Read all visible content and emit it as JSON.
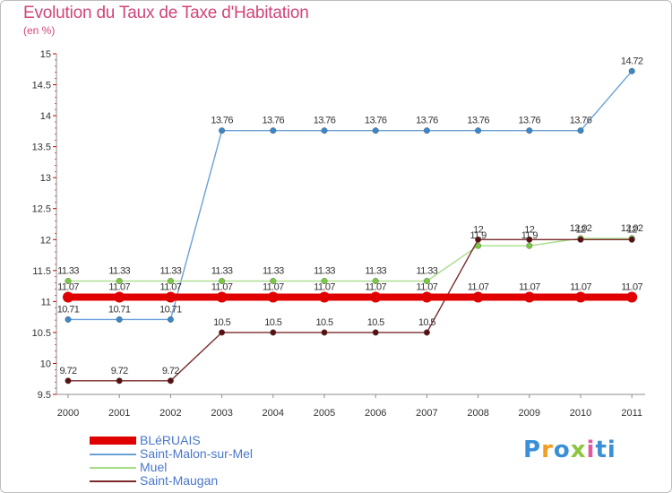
{
  "title": "Evolution du Taux de Taxe d'Habitation",
  "subtitle": "(en %)",
  "logo": {
    "text": "Proxiti",
    "letters": [
      "P",
      "r",
      "o",
      "x",
      "i",
      "ti"
    ]
  },
  "chart_data": {
    "type": "line",
    "title": "Evolution du Taux de Taxe d'Habitation",
    "ylabel": "(en %)",
    "xlabel": "",
    "x": [
      "2000",
      "2001",
      "2002",
      "2003",
      "2004",
      "2005",
      "2006",
      "2007",
      "2008",
      "2009",
      "2010",
      "2011"
    ],
    "ylim": [
      9.5,
      15
    ],
    "yticks": [
      9.5,
      10,
      10.5,
      11,
      11.5,
      12,
      12.5,
      13,
      13.5,
      14,
      14.5,
      15
    ],
    "series": [
      {
        "name": "BLéRUAIS",
        "color": "#e00000",
        "bold": true,
        "values": [
          11.07,
          11.07,
          11.07,
          11.07,
          11.07,
          11.07,
          11.07,
          11.07,
          11.07,
          11.07,
          11.07,
          11.07
        ],
        "labels": [
          "11.07",
          "11.07",
          "11.07",
          "11.07",
          "11.07",
          "11.07",
          "11.07",
          "11.07",
          "11.07",
          "11.07",
          "11.07",
          "11.07"
        ]
      },
      {
        "name": "Saint-Malon-sur-Mel",
        "color": "#6aa0d8",
        "marker": "#3a86c8",
        "values": [
          10.71,
          10.71,
          10.71,
          13.76,
          13.76,
          13.76,
          13.76,
          13.76,
          13.76,
          13.76,
          13.76,
          14.72
        ],
        "labels": [
          "10.71",
          "10.71",
          "10.71",
          "13.76",
          "13.76",
          "13.76",
          "13.76",
          "13.76",
          "13.76",
          "13.76",
          "13.76",
          "14.72"
        ]
      },
      {
        "name": "Muel",
        "color": "#a8dc8a",
        "marker": "#7ac943",
        "values": [
          11.33,
          11.33,
          11.33,
          11.33,
          11.33,
          11.33,
          11.33,
          11.33,
          11.9,
          11.9,
          12.02,
          12.02
        ],
        "labels": [
          "11.33",
          "11.33",
          "11.33",
          "11.33",
          "11.33",
          "11.33",
          "11.33",
          "11.33",
          "11.9",
          "11.9",
          "12.02",
          "12.02"
        ]
      },
      {
        "name": "Saint-Maugan",
        "color": "#7a2a2a",
        "marker": "#5a1010",
        "values": [
          9.72,
          9.72,
          9.72,
          10.5,
          10.5,
          10.5,
          10.5,
          10.5,
          12,
          12,
          12,
          12
        ],
        "labels": [
          "9.72",
          "9.72",
          "9.72",
          "10.5",
          "10.5",
          "10.5",
          "10.5",
          "10.5",
          "12",
          "12",
          "12",
          "12"
        ]
      }
    ]
  }
}
